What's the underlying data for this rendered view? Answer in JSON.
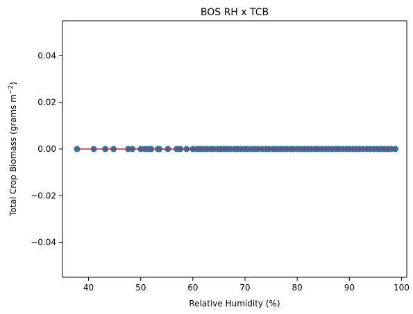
{
  "chart_data": {
    "type": "scatter",
    "title": "BOS RH x TCB",
    "xlabel": "Relative Humidity (%)",
    "ylabel": "Total Crop Biomass (grams m",
    "ylabel_unit_exponent": "−2",
    "ylabel_suffix": ")",
    "xlim": [
      35,
      101
    ],
    "ylim": [
      -0.055,
      0.055
    ],
    "xticks": [
      40,
      50,
      60,
      70,
      80,
      90,
      100
    ],
    "yticks": [
      -0.04,
      -0.02,
      0.0,
      0.02,
      0.04
    ],
    "ytick_labels": [
      "−0.04",
      "−0.02",
      "0.00",
      "0.02",
      "0.04"
    ],
    "grid": false,
    "legend": "none",
    "point_color": "#1f77b4",
    "fit_line_color": "#d62728",
    "fit_line": {
      "x": [
        37.8,
        98.8
      ],
      "y": [
        0,
        0
      ]
    },
    "x": [
      37.8,
      41.0,
      43.2,
      44.8,
      47.6,
      48.4,
      50.0,
      50.8,
      51.5,
      52.0,
      53.3,
      53.6,
      55.2,
      56.9,
      57.6,
      58.8,
      60.0,
      60.8,
      61.4,
      62.0,
      62.7,
      63.4,
      64.0,
      64.8,
      65.4,
      66.0,
      66.6,
      67.2,
      68.0,
      68.6,
      69.2,
      69.9,
      70.5,
      71.2,
      71.9,
      72.5,
      73.3,
      74.0,
      74.6,
      75.4,
      76.0,
      76.7,
      77.3,
      78.0,
      78.7,
      79.3,
      80.0,
      80.7,
      81.4,
      82.0,
      82.7,
      83.4,
      84.0,
      84.7,
      85.4,
      86.0,
      86.7,
      87.4,
      88.0,
      88.7,
      89.4,
      90.0,
      90.7,
      91.4,
      92.0,
      92.7,
      93.4,
      94.0,
      94.7,
      95.4,
      96.0,
      96.7,
      97.4,
      98.0,
      98.8
    ],
    "y": [
      0,
      0,
      0,
      0,
      0,
      0,
      0,
      0,
      0,
      0,
      0,
      0,
      0,
      0,
      0,
      0,
      0,
      0,
      0,
      0,
      0,
      0,
      0,
      0,
      0,
      0,
      0,
      0,
      0,
      0,
      0,
      0,
      0,
      0,
      0,
      0,
      0,
      0,
      0,
      0,
      0,
      0,
      0,
      0,
      0,
      0,
      0,
      0,
      0,
      0,
      0,
      0,
      0,
      0,
      0,
      0,
      0,
      0,
      0,
      0,
      0,
      0,
      0,
      0,
      0,
      0,
      0,
      0,
      0,
      0,
      0,
      0,
      0,
      0,
      0
    ]
  }
}
